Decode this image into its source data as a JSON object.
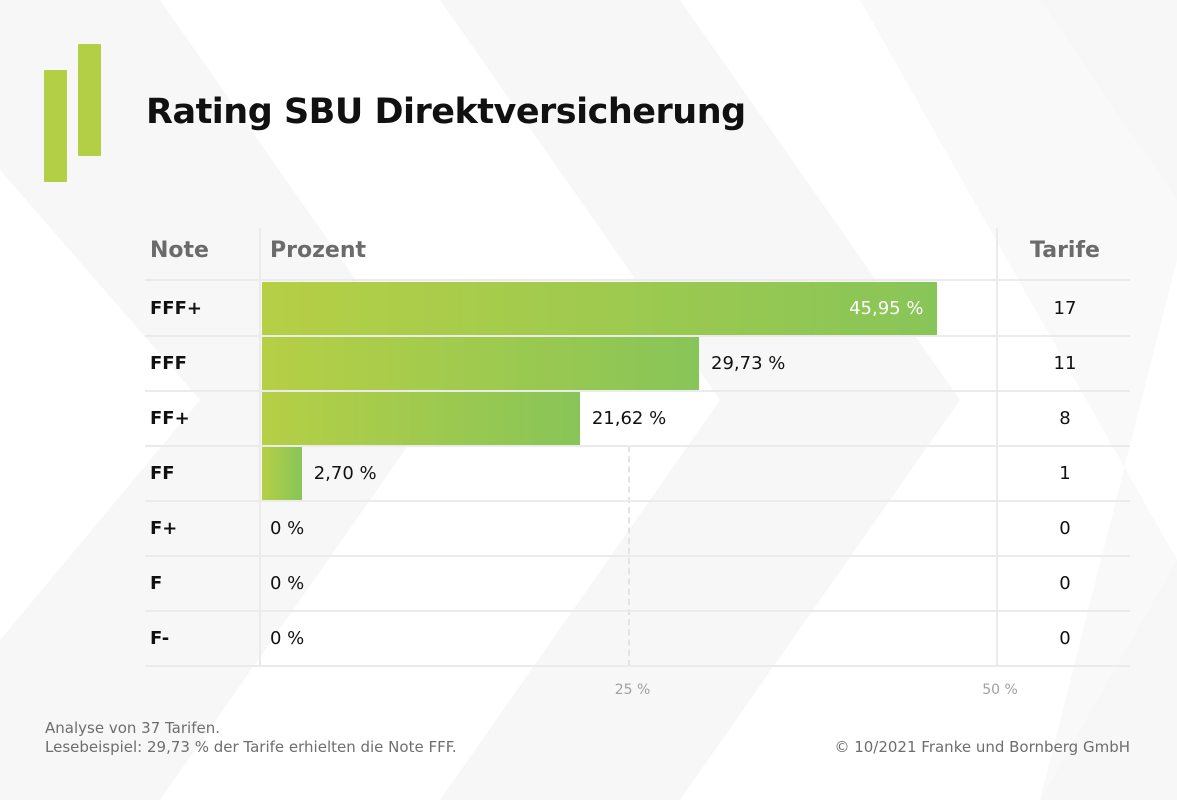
{
  "title": "Rating SBU Direktversicherung",
  "logo": {
    "icon": "two-bar-logo-icon",
    "color": "#b3cf45"
  },
  "colors": {
    "bar_start": "#b6cf45",
    "bar_end": "#88c558",
    "header_text": "#6b6b6b",
    "grid": "#ebebeb"
  },
  "table": {
    "headers": {
      "note": "Note",
      "percent": "Prozent",
      "tarife": "Tarife"
    }
  },
  "chart_data": {
    "type": "bar",
    "orientation": "horizontal",
    "title": "Rating SBU Direktversicherung",
    "xlabel": "Prozent",
    "ylabel": "Note",
    "categories": [
      "FFF+",
      "FFF",
      "FF+",
      "FF",
      "F+",
      "F",
      "F-"
    ],
    "values": [
      45.95,
      29.73,
      21.62,
      2.7,
      0,
      0,
      0
    ],
    "value_labels": [
      "45,95 %",
      "29,73 %",
      "21,62 %",
      "2,70 %",
      "0 %",
      "0 %",
      "0 %"
    ],
    "tarife": [
      17,
      11,
      8,
      1,
      0,
      0,
      0
    ],
    "xlim": [
      0,
      50
    ],
    "x_ticks": [
      25,
      50
    ],
    "x_tick_labels": [
      "25 %",
      "50 %"
    ],
    "grid": "dashed vertical at 25 %",
    "legend": "none"
  },
  "footer": {
    "line1": "Analyse von 37 Tarifen.",
    "line2": "Lesebeispiel: 29,73 % der Tarife erhielten die Note FFF.",
    "copyright": "© 10/2021 Franke und Bornberg GmbH"
  }
}
